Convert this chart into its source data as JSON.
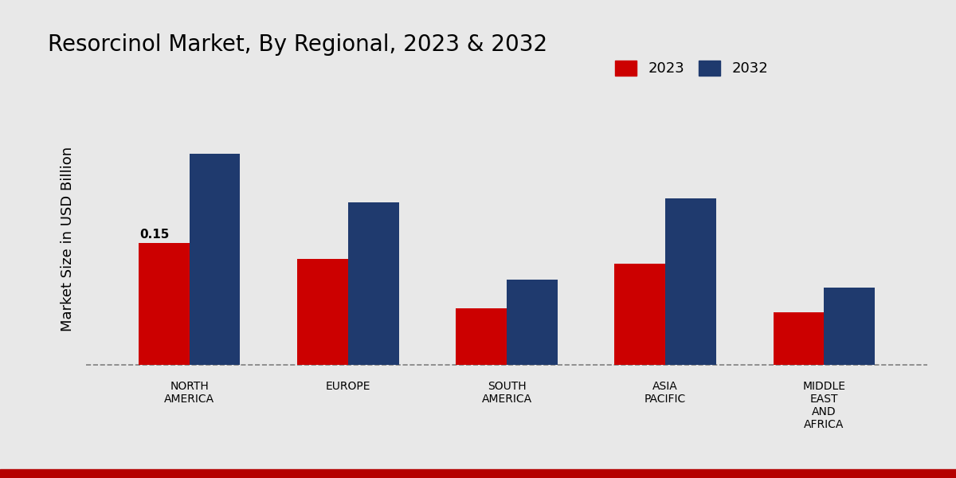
{
  "title": "Resorcinol Market, By Regional, 2023 & 2032",
  "ylabel": "Market Size in USD Billion",
  "categories": [
    "NORTH\nAMERICA",
    "EUROPE",
    "SOUTH\nAMERICA",
    "ASIA\nPACIFIC",
    "MIDDLE\nEAST\nAND\nAFRICA"
  ],
  "values_2023": [
    0.15,
    0.13,
    0.07,
    0.125,
    0.065
  ],
  "values_2032": [
    0.26,
    0.2,
    0.105,
    0.205,
    0.095
  ],
  "color_2023": "#CC0000",
  "color_2032": "#1F3A6E",
  "bar_width": 0.32,
  "annotation_text": "0.15",
  "background_color": "#E8E8E8",
  "legend_labels": [
    "2023",
    "2032"
  ],
  "dashed_line_y": 0.0,
  "bottom_bar_color": "#B50000",
  "title_fontsize": 20,
  "axis_label_fontsize": 13,
  "tick_label_fontsize": 10
}
